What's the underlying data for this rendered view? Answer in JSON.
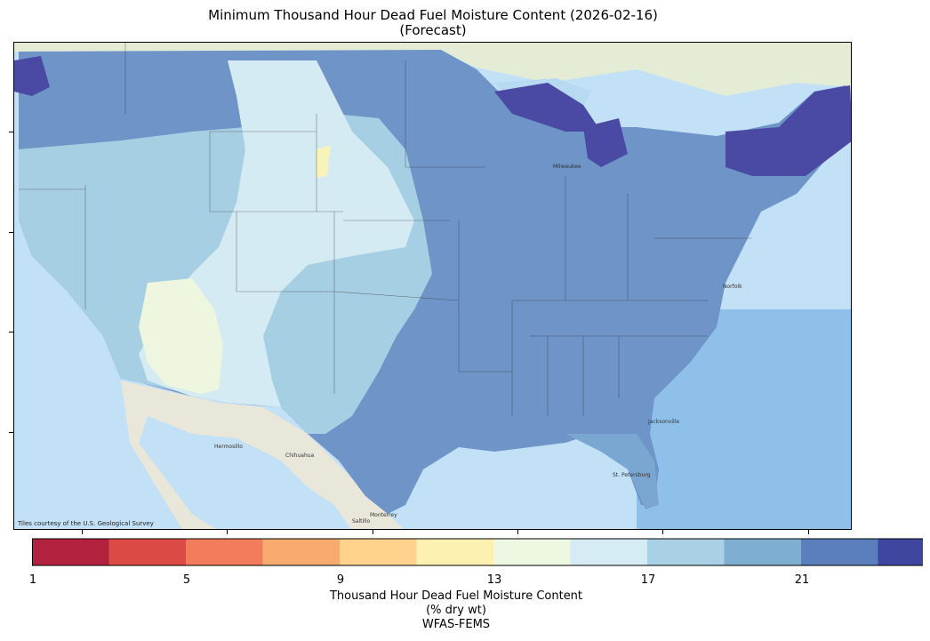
{
  "title": {
    "line1": "Minimum Thousand Hour Dead Fuel Moisture Content (2026-02-16)",
    "line2": "(Forecast)"
  },
  "map": {
    "attribution": "Tiles courtesy of the U.S. Geological Survey",
    "cities": [
      "Hermosillo",
      "Chihuahua",
      "Monterrey",
      "Saltillo",
      "Milwaukee",
      "Jacksonville",
      "St. Petersburg",
      "Norfolk"
    ],
    "colors": {
      "ocean": "#b9dcf5",
      "land": "#e8eedb",
      "mexico": "#e9e6dd"
    }
  },
  "colorbar": {
    "tick_labels": [
      "1",
      "5",
      "9",
      "13",
      "17",
      "21"
    ],
    "bins": [
      1,
      3,
      5,
      7,
      9,
      11,
      13,
      15,
      17,
      19,
      21,
      23
    ],
    "colors": [
      "#b2213e",
      "#db4a44",
      "#f27c5b",
      "#f9ab6f",
      "#fed28c",
      "#fdf1b2",
      "#eef7e2",
      "#d6ecf4",
      "#a9d0e4",
      "#7eaed2",
      "#5b7ebd",
      "#3f46a0"
    ],
    "extend": "max",
    "label_line1": "Thousand Hour Dead Fuel Moisture Content",
    "label_line2": "(% dry wt)",
    "label_line3": "WFAS-FEMS"
  }
}
